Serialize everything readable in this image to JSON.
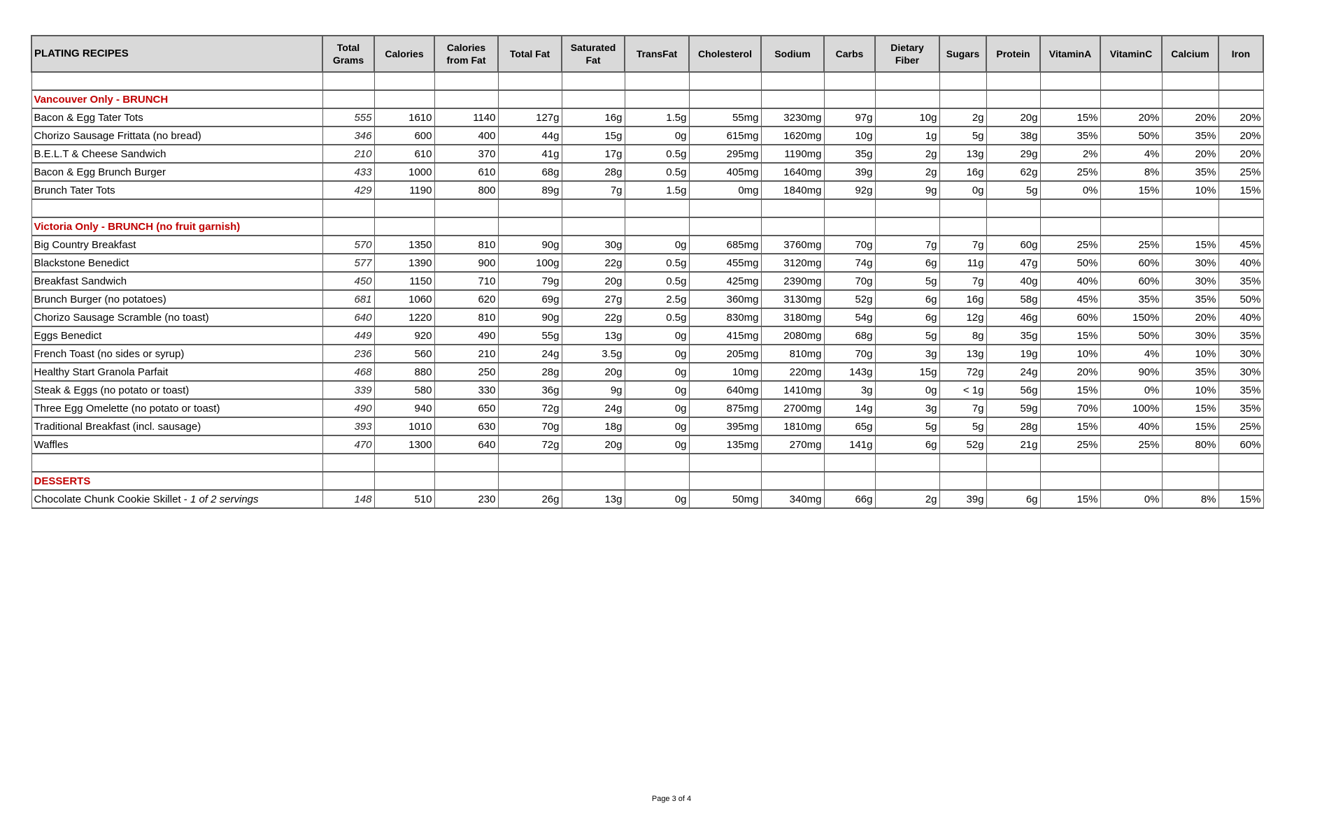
{
  "table": {
    "headers": [
      "PLATING RECIPES",
      "Total\nGrams",
      "Calories",
      "Calories\nfrom Fat",
      "Total Fat",
      "Saturated\nFat",
      "TransFat",
      "Cholesterol",
      "Sodium",
      "Carbs",
      "Dietary\nFiber",
      "Sugars",
      "Protein",
      "VitaminA",
      "VitaminC",
      "Calcium",
      "Iron"
    ],
    "rows": [
      {
        "type": "blank"
      },
      {
        "type": "section",
        "name": "Vancouver Only - BRUNCH"
      },
      {
        "type": "item",
        "name": "Bacon & Egg Tater Tots",
        "values": [
          "555",
          "1610",
          "1140",
          "127g",
          "16g",
          "1.5g",
          "55mg",
          "3230mg",
          "97g",
          "10g",
          "2g",
          "20g",
          "15%",
          "20%",
          "20%",
          "20%"
        ]
      },
      {
        "type": "item",
        "name": "Chorizo Sausage Frittata (no bread)",
        "values": [
          "346",
          "600",
          "400",
          "44g",
          "15g",
          "0g",
          "615mg",
          "1620mg",
          "10g",
          "1g",
          "5g",
          "38g",
          "35%",
          "50%",
          "35%",
          "20%"
        ]
      },
      {
        "type": "item",
        "name": "B.E.L.T & Cheese Sandwich",
        "values": [
          "210",
          "610",
          "370",
          "41g",
          "17g",
          "0.5g",
          "295mg",
          "1190mg",
          "35g",
          "2g",
          "13g",
          "29g",
          "2%",
          "4%",
          "20%",
          "20%"
        ]
      },
      {
        "type": "item",
        "name": "Bacon & Egg Brunch Burger",
        "values": [
          "433",
          "1000",
          "610",
          "68g",
          "28g",
          "0.5g",
          "405mg",
          "1640mg",
          "39g",
          "2g",
          "16g",
          "62g",
          "25%",
          "8%",
          "35%",
          "25%"
        ]
      },
      {
        "type": "item",
        "name": "Brunch Tater Tots",
        "values": [
          "429",
          "1190",
          "800",
          "89g",
          "7g",
          "1.5g",
          "0mg",
          "1840mg",
          "92g",
          "9g",
          "0g",
          "5g",
          "0%",
          "15%",
          "10%",
          "15%"
        ]
      },
      {
        "type": "blank"
      },
      {
        "type": "section",
        "name": "Victoria Only - BRUNCH (no fruit garnish)"
      },
      {
        "type": "item",
        "name": "Big Country Breakfast",
        "values": [
          "570",
          "1350",
          "810",
          "90g",
          "30g",
          "0g",
          "685mg",
          "3760mg",
          "70g",
          "7g",
          "7g",
          "60g",
          "25%",
          "25%",
          "15%",
          "45%"
        ]
      },
      {
        "type": "item",
        "name": "Blackstone Benedict",
        "values": [
          "577",
          "1390",
          "900",
          "100g",
          "22g",
          "0.5g",
          "455mg",
          "3120mg",
          "74g",
          "6g",
          "11g",
          "47g",
          "50%",
          "60%",
          "30%",
          "40%"
        ]
      },
      {
        "type": "item",
        "name": "Breakfast Sandwich",
        "values": [
          "450",
          "1150",
          "710",
          "79g",
          "20g",
          "0.5g",
          "425mg",
          "2390mg",
          "70g",
          "5g",
          "7g",
          "40g",
          "40%",
          "60%",
          "30%",
          "35%"
        ]
      },
      {
        "type": "item",
        "name": "Brunch Burger (no potatoes)",
        "values": [
          "681",
          "1060",
          "620",
          "69g",
          "27g",
          "2.5g",
          "360mg",
          "3130mg",
          "52g",
          "6g",
          "16g",
          "58g",
          "45%",
          "35%",
          "35%",
          "50%"
        ]
      },
      {
        "type": "item",
        "name": "Chorizo Sausage Scramble (no toast)",
        "values": [
          "640",
          "1220",
          "810",
          "90g",
          "22g",
          "0.5g",
          "830mg",
          "3180mg",
          "54g",
          "6g",
          "12g",
          "46g",
          "60%",
          "150%",
          "20%",
          "40%"
        ]
      },
      {
        "type": "item",
        "name": "Eggs Benedict",
        "values": [
          "449",
          "920",
          "490",
          "55g",
          "13g",
          "0g",
          "415mg",
          "2080mg",
          "68g",
          "5g",
          "8g",
          "35g",
          "15%",
          "50%",
          "30%",
          "35%"
        ]
      },
      {
        "type": "item",
        "name": "French Toast (no sides or syrup)",
        "values": [
          "236",
          "560",
          "210",
          "24g",
          "3.5g",
          "0g",
          "205mg",
          "810mg",
          "70g",
          "3g",
          "13g",
          "19g",
          "10%",
          "4%",
          "10%",
          "30%"
        ]
      },
      {
        "type": "item",
        "name": "Healthy Start Granola Parfait",
        "values": [
          "468",
          "880",
          "250",
          "28g",
          "20g",
          "0g",
          "10mg",
          "220mg",
          "143g",
          "15g",
          "72g",
          "24g",
          "20%",
          "90%",
          "35%",
          "30%"
        ]
      },
      {
        "type": "item",
        "name": "Steak & Eggs (no potato or toast)",
        "values": [
          "339",
          "580",
          "330",
          "36g",
          "9g",
          "0g",
          "640mg",
          "1410mg",
          "3g",
          "0g",
          "< 1g",
          "56g",
          "15%",
          "0%",
          "10%",
          "35%"
        ]
      },
      {
        "type": "item",
        "name": "Three Egg Omelette (no potato or toast)",
        "values": [
          "490",
          "940",
          "650",
          "72g",
          "24g",
          "0g",
          "875mg",
          "2700mg",
          "14g",
          "3g",
          "7g",
          "59g",
          "70%",
          "100%",
          "15%",
          "35%"
        ]
      },
      {
        "type": "item",
        "name": "Traditional Breakfast (incl. sausage)",
        "values": [
          "393",
          "1010",
          "630",
          "70g",
          "18g",
          "0g",
          "395mg",
          "1810mg",
          "65g",
          "5g",
          "5g",
          "28g",
          "15%",
          "40%",
          "15%",
          "25%"
        ]
      },
      {
        "type": "item",
        "name": "Waffles",
        "values": [
          "470",
          "1300",
          "640",
          "72g",
          "20g",
          "0g",
          "135mg",
          "270mg",
          "141g",
          "6g",
          "52g",
          "21g",
          "25%",
          "25%",
          "80%",
          "60%"
        ]
      },
      {
        "type": "blank"
      },
      {
        "type": "section",
        "name": "DESSERTS"
      },
      {
        "type": "item",
        "name": "Chocolate Chunk Cookie Skillet  - ",
        "note": "1 of 2 servings",
        "values": [
          "148",
          "510",
          "230",
          "26g",
          "13g",
          "0g",
          "50mg",
          "340mg",
          "66g",
          "2g",
          "39g",
          "6g",
          "15%",
          "0%",
          "8%",
          "15%"
        ]
      }
    ]
  },
  "footer": {
    "page_label": "Page 3 of 4"
  },
  "colors": {
    "section_text": "#c00000",
    "header_bg": "#d9d9d9"
  }
}
